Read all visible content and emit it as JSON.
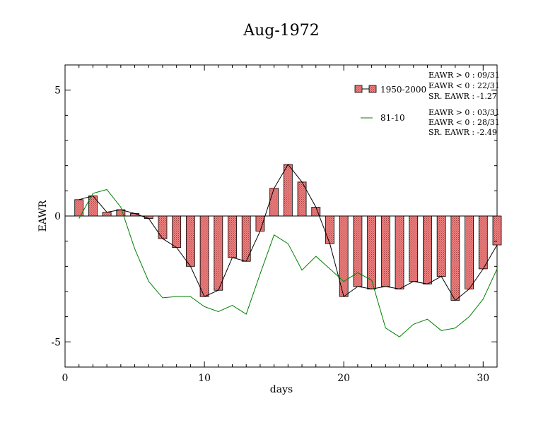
{
  "chart_data": {
    "type": "bar",
    "title": "Aug-1972",
    "xlabel": "days",
    "ylabel": "EAWR",
    "xlim": [
      0,
      31
    ],
    "ylim": [
      -6,
      6
    ],
    "x_ticks": [
      0,
      10,
      20,
      30
    ],
    "y_ticks": [
      -5,
      0,
      5
    ],
    "grid": false,
    "legend_position": "top-right",
    "x": [
      1,
      2,
      3,
      4,
      5,
      6,
      7,
      8,
      9,
      10,
      11,
      12,
      13,
      14,
      15,
      16,
      17,
      18,
      19,
      20,
      21,
      22,
      23,
      24,
      25,
      26,
      27,
      28,
      29,
      30,
      31
    ],
    "series": [
      {
        "name": "1950-2000",
        "kind": "bar+line",
        "color": "#f08080",
        "line_color": "#000000",
        "values": [
          0.65,
          0.8,
          0.15,
          0.25,
          0.1,
          -0.1,
          -0.9,
          -1.25,
          -2.0,
          -3.2,
          -2.95,
          -1.65,
          -1.8,
          -0.6,
          1.1,
          2.05,
          1.35,
          0.35,
          -1.1,
          -3.2,
          -2.8,
          -2.9,
          -2.8,
          -2.9,
          -2.6,
          -2.7,
          -2.4,
          -3.35,
          -2.9,
          -2.1,
          -1.15
        ]
      },
      {
        "name": "81-10",
        "kind": "line",
        "color": "#008000",
        "values": [
          -0.1,
          0.9,
          1.05,
          0.35,
          -1.3,
          -2.6,
          -3.25,
          -3.2,
          -3.2,
          -3.6,
          -3.8,
          -3.55,
          -3.9,
          -2.3,
          -0.75,
          -1.1,
          -2.15,
          -1.6,
          -2.1,
          -2.6,
          -2.25,
          -2.55,
          -4.45,
          -4.8,
          -4.3,
          -4.1,
          -4.55,
          -4.45,
          -4.0,
          -3.3,
          -2.1
        ]
      }
    ],
    "annotations": [
      [
        "EAWR > 0 : 09/31",
        "EAWR < 0 : 22/31",
        "SR. EAWR : -1.27"
      ],
      [
        "EAWR > 0 : 03/31",
        "EAWR < 0 : 28/31",
        "SR. EAWR : -2.49"
      ]
    ]
  }
}
